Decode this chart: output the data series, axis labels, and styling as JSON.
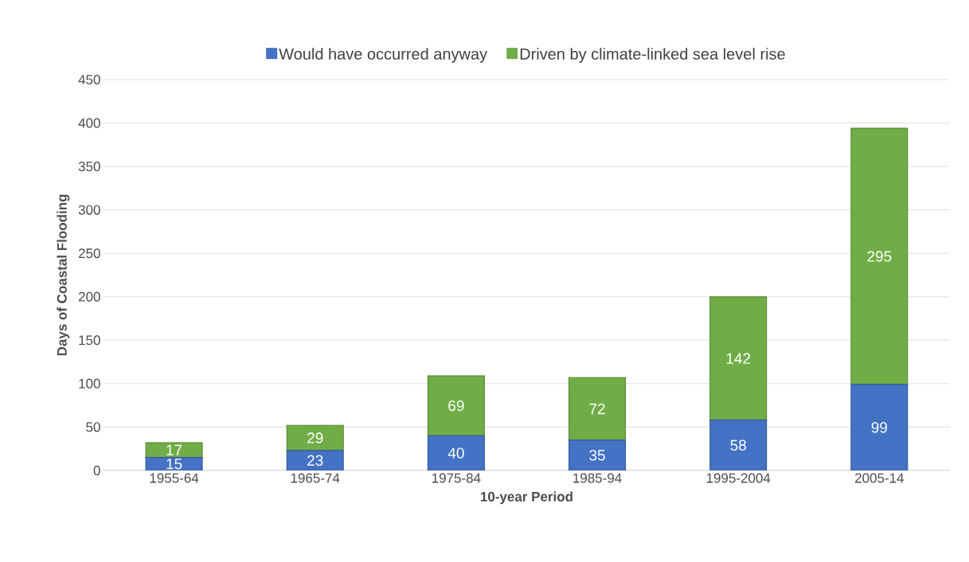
{
  "chart_data": {
    "type": "bar",
    "stacked": true,
    "xlabel": "10-year Period",
    "ylabel": "Days of Coastal Flooding",
    "categories": [
      "1955-64",
      "1965-74",
      "1975-84",
      "1985-94",
      "1995-2004",
      "2005-14"
    ],
    "series": [
      {
        "name": "Would have occurred anyway",
        "color": "#4472c4",
        "values": [
          15,
          23,
          40,
          35,
          58,
          99
        ]
      },
      {
        "name": "Driven by climate-linked sea level rise",
        "color": "#70ad47",
        "values": [
          17,
          29,
          69,
          72,
          142,
          295
        ]
      }
    ],
    "ylim": [
      0,
      450
    ],
    "yticks": [
      0,
      50,
      100,
      150,
      200,
      250,
      300,
      350,
      400,
      450
    ],
    "grid": "y",
    "legend": "top",
    "data_labels": true
  }
}
